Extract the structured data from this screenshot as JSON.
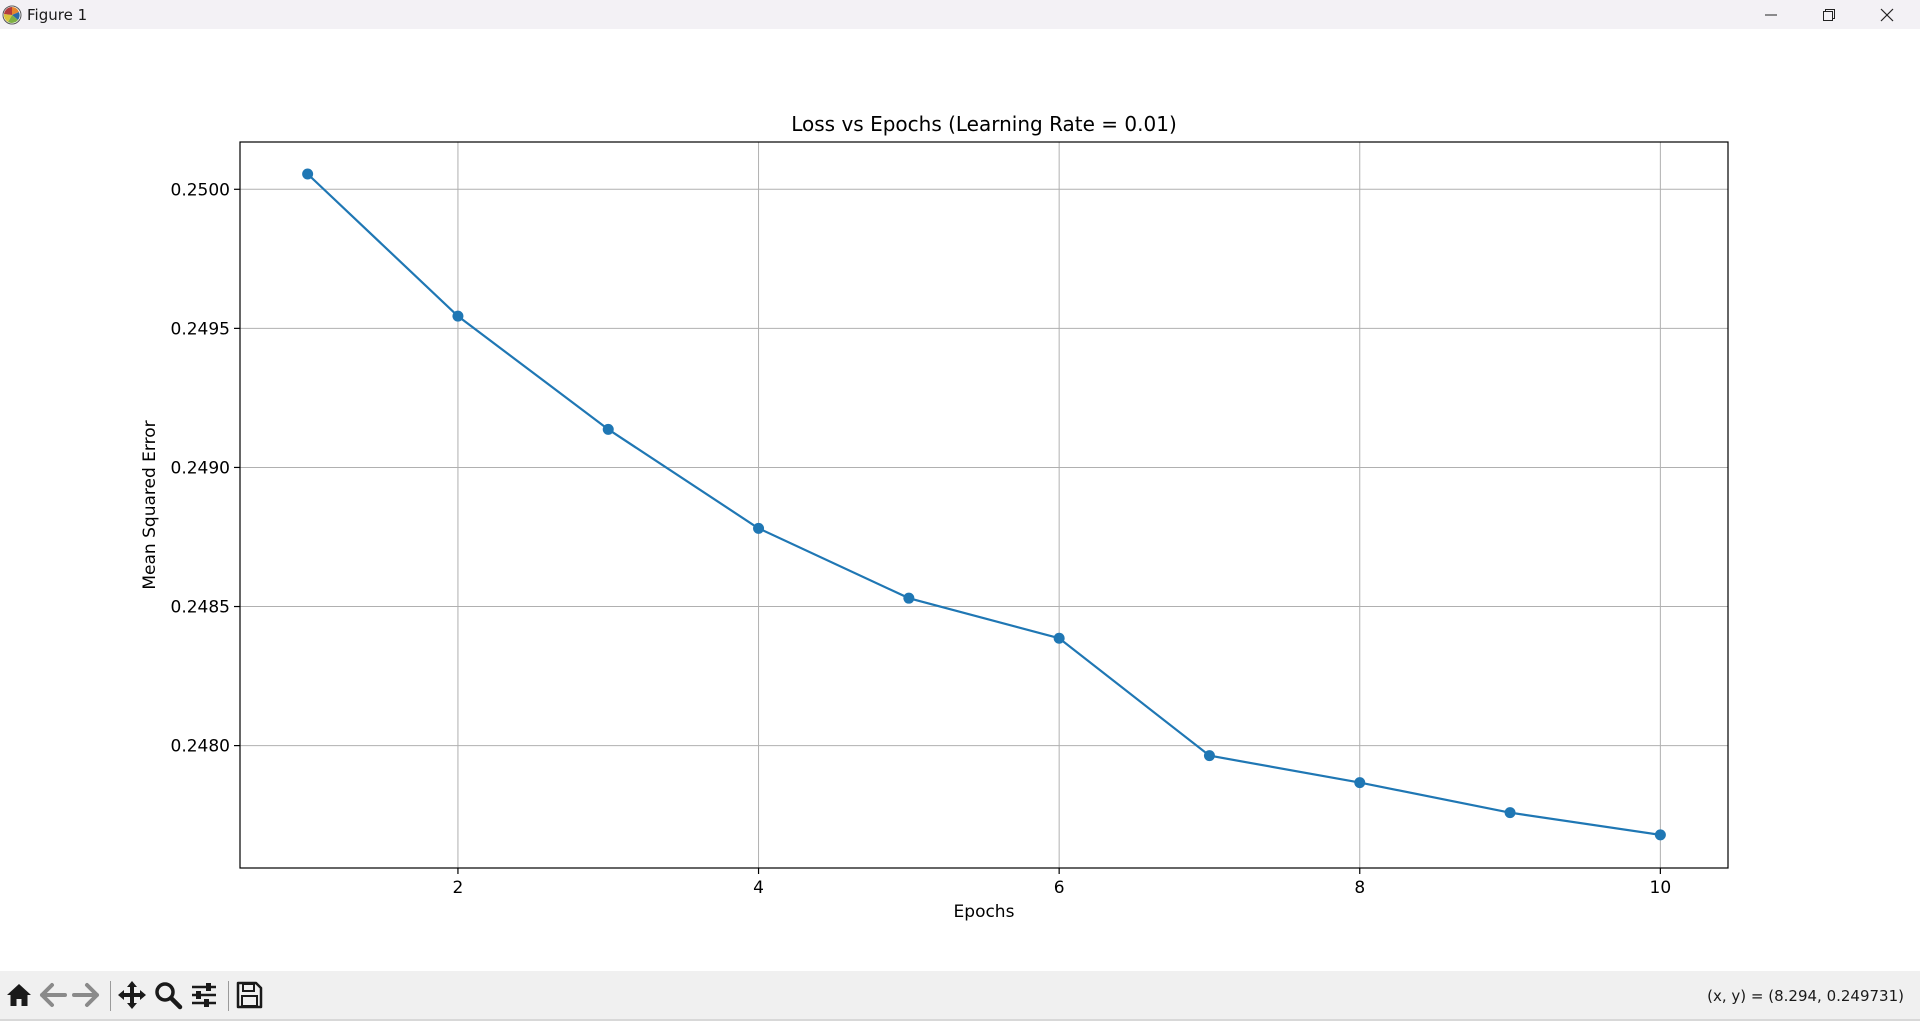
{
  "window": {
    "title": "Figure 1"
  },
  "toolbar": {
    "buttons": [
      {
        "name": "home-icon"
      },
      {
        "name": "back-icon"
      },
      {
        "name": "forward-icon"
      },
      {
        "name": "pan-icon"
      },
      {
        "name": "zoom-icon"
      },
      {
        "name": "configure-subplots-icon"
      },
      {
        "name": "save-icon"
      }
    ],
    "coords": "(x, y) = (8.294, 0.249731)"
  },
  "colors": {
    "series": "#1f77b4",
    "grid": "#b0b0b0",
    "titlebar": "#f3f1f5",
    "toolbar": "#f0f0f0"
  },
  "chart_data": {
    "type": "line",
    "title": "Loss vs Epochs (Learning Rate = 0.01)",
    "xlabel": "Epochs",
    "ylabel": "Mean Squared Error",
    "xlim": [
      0.55,
      10.45
    ],
    "ylim": [
      0.24756,
      0.25017
    ],
    "xticks": [
      2,
      4,
      6,
      8,
      10
    ],
    "xtick_labels": [
      "2",
      "4",
      "6",
      "8",
      "10"
    ],
    "yticks": [
      0.248,
      0.2485,
      0.249,
      0.2495,
      0.25
    ],
    "ytick_labels": [
      "0.2480",
      "0.2485",
      "0.2490",
      "0.2495",
      "0.2500"
    ],
    "grid": true,
    "markers": true,
    "series": [
      {
        "x": [
          1,
          2,
          3,
          4,
          5,
          6,
          7,
          8,
          9,
          10
        ],
        "values": [
          0.250055,
          0.249544,
          0.249137,
          0.248781,
          0.24853,
          0.248386,
          0.247964,
          0.247867,
          0.247759,
          0.247679
        ]
      }
    ]
  }
}
